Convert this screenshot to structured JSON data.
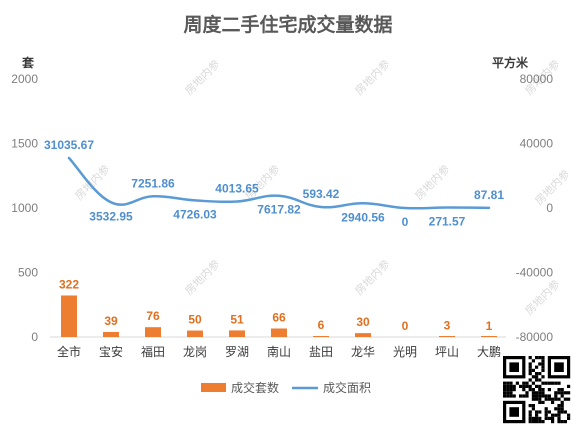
{
  "chart_data": {
    "type": "bar",
    "title": "周度二手住宅成交量数据",
    "categories": [
      "全市",
      "宝安",
      "福田",
      "龙岗",
      "罗湖",
      "南山",
      "盐田",
      "龙华",
      "光明",
      "坪山",
      "大鹏"
    ],
    "y_left": {
      "unit": "套",
      "ylim": [
        0,
        2000
      ],
      "ticks": [
        "0",
        "500",
        "1000",
        "1500",
        "2000"
      ]
    },
    "y_right": {
      "unit": "平方米",
      "ylim": [
        -80000,
        80000
      ],
      "ticks": [
        "-80000",
        "-40000",
        "0",
        "40000",
        "80000"
      ]
    },
    "series": [
      {
        "name": "成交套数",
        "type": "bar",
        "axis": "left",
        "color": "#ed7d31",
        "values": [
          322,
          39,
          76,
          50,
          51,
          66,
          6,
          30,
          0,
          3,
          1
        ],
        "labels": [
          "322",
          "39",
          "76",
          "50",
          "51",
          "66",
          "6",
          "30",
          "0",
          "3",
          "1"
        ]
      },
      {
        "name": "成交面积",
        "type": "line",
        "axis": "right",
        "color": "#5b9bd5",
        "values": [
          31035.67,
          3532.95,
          7251.86,
          4726.03,
          4013.65,
          7617.82,
          593.42,
          2940.56,
          0,
          271.57,
          87.81
        ],
        "labels": [
          "31035.67",
          "3532.95",
          "7251.86",
          "4726.03",
          "4013.65",
          "7617.82",
          "593.42",
          "2940.56",
          "0",
          "271.57",
          "87.81"
        ]
      }
    ],
    "grid": false,
    "legend": "bottom"
  },
  "watermark": "房地内参"
}
